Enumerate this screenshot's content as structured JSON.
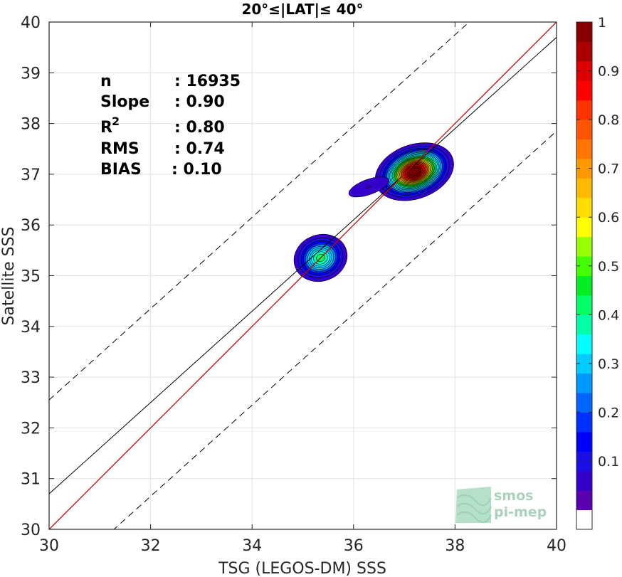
{
  "chart_data": {
    "type": "scatter",
    "title": "20°≤|LAT|≤ 40°",
    "xlabel": "TSG (LEGOS-DM) SSS",
    "ylabel": "Satellite SSS",
    "xlim": [
      30,
      40
    ],
    "ylim": [
      30,
      40
    ],
    "xticks": [
      30,
      32,
      34,
      36,
      38,
      40
    ],
    "yticks": [
      30,
      31,
      32,
      33,
      34,
      35,
      36,
      37,
      38,
      39,
      40
    ],
    "grid": true,
    "stats": [
      {
        "label": "n",
        "value": ": 16935"
      },
      {
        "label": "Slope",
        "value": ": 0.90"
      },
      {
        "label": "R",
        "sup": "2",
        "value": ": 0.80"
      },
      {
        "label": "RMS",
        "value": ": 0.74"
      },
      {
        "label": "BIAS",
        "value": ": 0.10"
      }
    ],
    "lines": {
      "one_to_one": {
        "slope": 1.0,
        "intercept": 0.0,
        "color": "#cc0000"
      },
      "regression": {
        "slope": 0.9,
        "intercept": 3.7,
        "color": "#000000"
      },
      "upper_bound": {
        "slope": 0.9,
        "intercept": 5.55,
        "dashed": true
      },
      "lower_bound": {
        "slope": 0.9,
        "intercept": 1.85,
        "dashed": true
      }
    },
    "density_clusters": [
      {
        "center_x": 37.2,
        "center_y": 37.05,
        "peak": 1.0,
        "sx": 0.45,
        "sy": 0.3
      },
      {
        "center_x": 36.3,
        "center_y": 36.75,
        "peak": 0.08,
        "sx": 0.5,
        "sy": 0.18
      },
      {
        "center_x": 35.35,
        "center_y": 35.35,
        "peak": 0.42,
        "sx": 0.35,
        "sy": 0.3
      }
    ],
    "colorbar": {
      "min": 0,
      "max": 1,
      "ticks": [
        "0.1",
        "0.2",
        "0.3",
        "0.4",
        "0.5",
        "0.6",
        "0.7",
        "0.8",
        "0.9",
        "1"
      ],
      "colors": [
        "#ffffff",
        "#5a00b0",
        "#3300cc",
        "#1a10e6",
        "#0000ff",
        "#0030ff",
        "#0066ff",
        "#0099ff",
        "#00ccff",
        "#00ffff",
        "#00ffaa",
        "#00ff66",
        "#00ee22",
        "#44ff00",
        "#99ff00",
        "#ffff00",
        "#ffdd00",
        "#ffbb00",
        "#ff9900",
        "#ff7700",
        "#ff5500",
        "#ff3300",
        "#ff0000",
        "#dd0000",
        "#aa0000",
        "#880000"
      ]
    }
  },
  "watermark": {
    "line1": "smos",
    "line2": "pi-mep"
  }
}
